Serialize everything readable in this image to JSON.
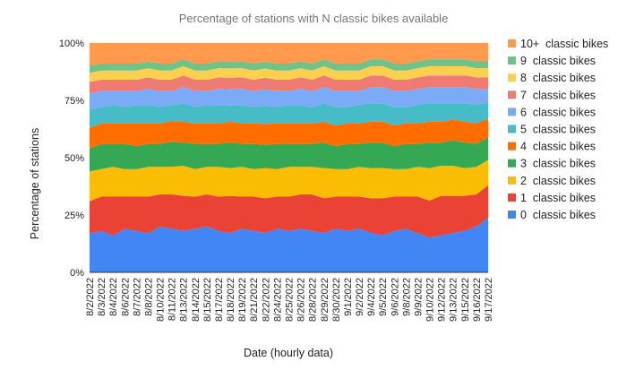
{
  "chart_data": {
    "type": "area",
    "stacked": true,
    "percent": true,
    "title": "Percentage of stations with N classic bikes available",
    "xlabel": "Date (hourly data)",
    "ylabel": "Percentage of stations",
    "ylim": [
      0,
      1
    ],
    "yticks": [
      "0%",
      "25%",
      "50%",
      "75%",
      "100%"
    ],
    "legend_position": "right",
    "x": [
      "8/2/2022",
      "8/3/2022",
      "8/4/2022",
      "8/6/2022",
      "8/7/2022",
      "8/8/2022",
      "8/10/2022",
      "8/11/2022",
      "8/13/2022",
      "8/14/2022",
      "8/15/2022",
      "8/17/2022",
      "8/18/2022",
      "8/19/2022",
      "8/21/2022",
      "8/22/2022",
      "8/24/2022",
      "8/25/2022",
      "8/26/2022",
      "8/28/2022",
      "8/29/2022",
      "8/30/2022",
      "9/1/2022",
      "9/2/2022",
      "9/4/2022",
      "9/5/2022",
      "9/6/2022",
      "9/8/2022",
      "9/9/2022",
      "9/10/2022",
      "9/12/2022",
      "9/13/2022",
      "9/15/2022",
      "9/16/2022",
      "9/17/2022"
    ],
    "series": [
      {
        "name": "0  classic bikes",
        "color": "#4285f4",
        "values": [
          0.17,
          0.18,
          0.16,
          0.19,
          0.18,
          0.17,
          0.2,
          0.19,
          0.18,
          0.19,
          0.2,
          0.18,
          0.17,
          0.19,
          0.18,
          0.17,
          0.19,
          0.18,
          0.19,
          0.18,
          0.17,
          0.19,
          0.18,
          0.19,
          0.17,
          0.16,
          0.18,
          0.19,
          0.17,
          0.15,
          0.16,
          0.17,
          0.18,
          0.2,
          0.24
        ]
      },
      {
        "name": "1  classic bikes",
        "color": "#ea4335",
        "values": [
          0.14,
          0.15,
          0.17,
          0.14,
          0.15,
          0.16,
          0.14,
          0.15,
          0.15,
          0.14,
          0.14,
          0.15,
          0.16,
          0.14,
          0.15,
          0.15,
          0.14,
          0.15,
          0.15,
          0.16,
          0.15,
          0.14,
          0.15,
          0.14,
          0.15,
          0.16,
          0.15,
          0.14,
          0.16,
          0.16,
          0.17,
          0.16,
          0.15,
          0.14,
          0.14
        ]
      },
      {
        "name": "2  classic bikes",
        "color": "#fbbc04",
        "values": [
          0.13,
          0.12,
          0.13,
          0.12,
          0.12,
          0.13,
          0.12,
          0.12,
          0.13,
          0.12,
          0.12,
          0.13,
          0.12,
          0.13,
          0.12,
          0.13,
          0.12,
          0.13,
          0.12,
          0.12,
          0.13,
          0.12,
          0.12,
          0.13,
          0.13,
          0.13,
          0.12,
          0.12,
          0.13,
          0.14,
          0.13,
          0.13,
          0.12,
          0.12,
          0.11
        ]
      },
      {
        "name": "3  classic bikes",
        "color": "#34a853",
        "values": [
          0.1,
          0.11,
          0.1,
          0.11,
          0.1,
          0.1,
          0.1,
          0.11,
          0.1,
          0.11,
          0.1,
          0.1,
          0.11,
          0.1,
          0.11,
          0.1,
          0.11,
          0.1,
          0.1,
          0.1,
          0.11,
          0.1,
          0.11,
          0.1,
          0.11,
          0.11,
          0.1,
          0.11,
          0.1,
          0.11,
          0.1,
          0.11,
          0.11,
          0.1,
          0.1
        ]
      },
      {
        "name": "4  classic bikes",
        "color": "#ff6d01",
        "values": [
          0.09,
          0.09,
          0.09,
          0.09,
          0.1,
          0.09,
          0.09,
          0.09,
          0.09,
          0.09,
          0.09,
          0.09,
          0.09,
          0.09,
          0.09,
          0.09,
          0.09,
          0.09,
          0.09,
          0.09,
          0.09,
          0.09,
          0.09,
          0.09,
          0.09,
          0.09,
          0.09,
          0.09,
          0.09,
          0.09,
          0.09,
          0.09,
          0.09,
          0.09,
          0.08
        ]
      },
      {
        "name": "5  classic bikes",
        "color": "#46bdc6",
        "values": [
          0.08,
          0.07,
          0.08,
          0.07,
          0.08,
          0.08,
          0.07,
          0.07,
          0.08,
          0.07,
          0.08,
          0.08,
          0.07,
          0.08,
          0.07,
          0.08,
          0.07,
          0.08,
          0.08,
          0.07,
          0.08,
          0.08,
          0.07,
          0.08,
          0.08,
          0.08,
          0.08,
          0.07,
          0.08,
          0.08,
          0.08,
          0.07,
          0.08,
          0.08,
          0.07
        ]
      },
      {
        "name": "6  classic bikes",
        "color": "#7baaf7",
        "values": [
          0.07,
          0.07,
          0.06,
          0.07,
          0.06,
          0.07,
          0.07,
          0.06,
          0.07,
          0.07,
          0.06,
          0.07,
          0.07,
          0.07,
          0.07,
          0.07,
          0.07,
          0.06,
          0.07,
          0.07,
          0.07,
          0.07,
          0.07,
          0.06,
          0.07,
          0.07,
          0.07,
          0.07,
          0.07,
          0.07,
          0.07,
          0.07,
          0.07,
          0.07,
          0.06
        ]
      },
      {
        "name": "7  classic bikes",
        "color": "#f07b72",
        "values": [
          0.05,
          0.05,
          0.05,
          0.05,
          0.05,
          0.05,
          0.05,
          0.05,
          0.05,
          0.05,
          0.05,
          0.05,
          0.05,
          0.05,
          0.05,
          0.05,
          0.05,
          0.05,
          0.05,
          0.05,
          0.05,
          0.05,
          0.05,
          0.05,
          0.05,
          0.05,
          0.05,
          0.05,
          0.05,
          0.05,
          0.05,
          0.05,
          0.05,
          0.05,
          0.05
        ]
      },
      {
        "name": "8  classic bikes",
        "color": "#fcd04f",
        "values": [
          0.04,
          0.04,
          0.04,
          0.04,
          0.04,
          0.04,
          0.04,
          0.04,
          0.04,
          0.04,
          0.04,
          0.04,
          0.04,
          0.04,
          0.04,
          0.04,
          0.04,
          0.04,
          0.04,
          0.04,
          0.04,
          0.04,
          0.04,
          0.04,
          0.04,
          0.04,
          0.04,
          0.04,
          0.04,
          0.04,
          0.04,
          0.04,
          0.04,
          0.04,
          0.04
        ]
      },
      {
        "name": "9  classic bikes",
        "color": "#71c287",
        "values": [
          0.03,
          0.03,
          0.03,
          0.03,
          0.03,
          0.03,
          0.03,
          0.03,
          0.03,
          0.03,
          0.03,
          0.03,
          0.03,
          0.03,
          0.03,
          0.03,
          0.03,
          0.03,
          0.03,
          0.03,
          0.03,
          0.03,
          0.03,
          0.03,
          0.03,
          0.03,
          0.03,
          0.03,
          0.03,
          0.03,
          0.03,
          0.03,
          0.03,
          0.03,
          0.03
        ]
      },
      {
        "name": "10+  classic bikes",
        "color": "#ff994d",
        "values": [
          0.1,
          0.09,
          0.09,
          0.09,
          0.09,
          0.08,
          0.09,
          0.09,
          0.07,
          0.09,
          0.09,
          0.08,
          0.08,
          0.08,
          0.09,
          0.08,
          0.09,
          0.09,
          0.08,
          0.09,
          0.07,
          0.09,
          0.09,
          0.09,
          0.07,
          0.07,
          0.09,
          0.09,
          0.08,
          0.07,
          0.07,
          0.07,
          0.07,
          0.08,
          0.08
        ]
      }
    ]
  }
}
